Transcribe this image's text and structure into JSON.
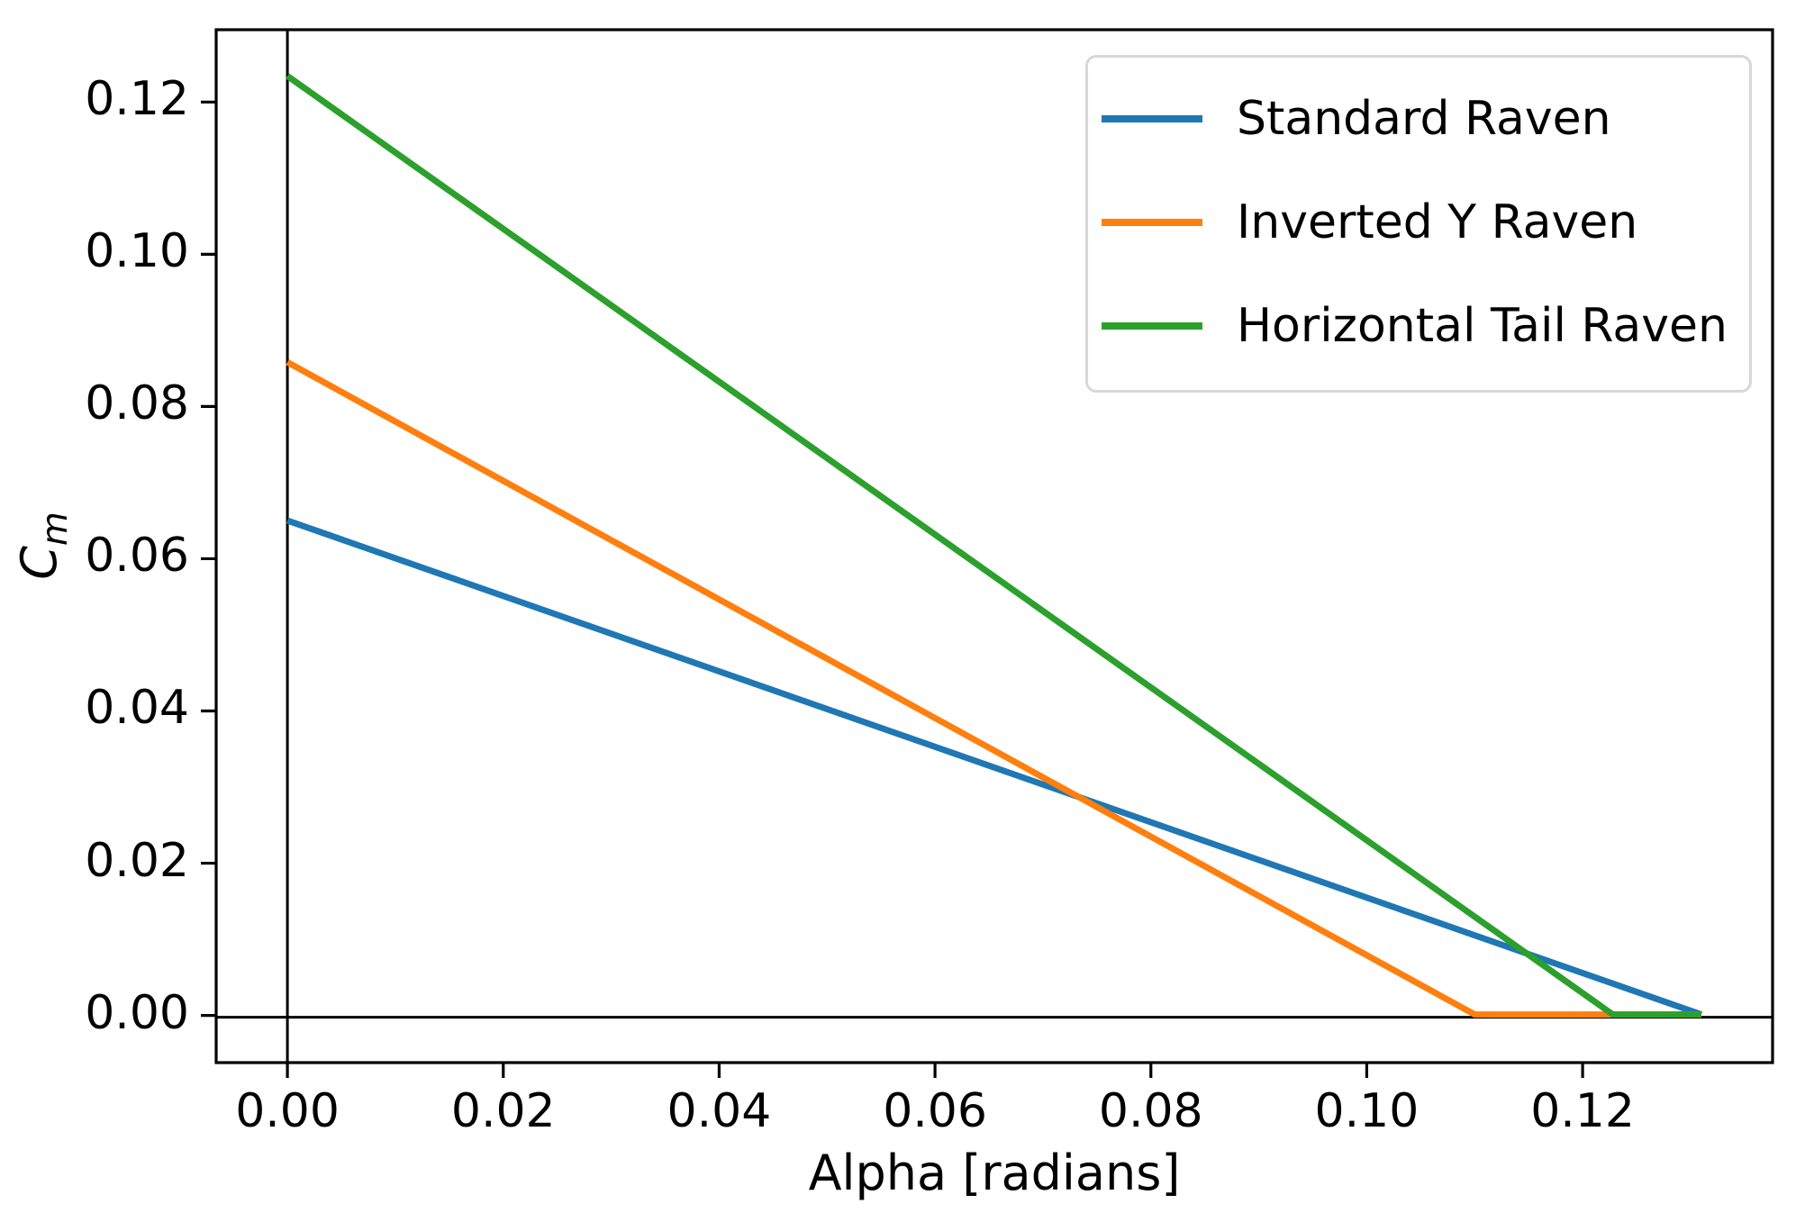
{
  "figure": {
    "background_color": "#ffffff",
    "axes_color": "#000000"
  },
  "chart_data": {
    "type": "line",
    "title": "",
    "xlabel": "Alpha [radians]",
    "ylabel": "Cm",
    "ylabel_main": "C",
    "ylabel_sub": "m",
    "xlim": [
      -0.0066,
      0.1376
    ],
    "ylim": [
      -0.0062,
      0.1295
    ],
    "grid": false,
    "legend_position": "upper right",
    "x_ticks": {
      "values": [
        0.0,
        0.02,
        0.04,
        0.06,
        0.08,
        0.1,
        0.12
      ],
      "labels": [
        "0.00",
        "0.02",
        "0.04",
        "0.06",
        "0.08",
        "0.10",
        "0.12"
      ]
    },
    "y_ticks": {
      "values": [
        0.0,
        0.02,
        0.04,
        0.06,
        0.08,
        0.1,
        0.12
      ],
      "labels": [
        "0.00",
        "0.02",
        "0.04",
        "0.06",
        "0.08",
        "0.10",
        "0.12"
      ]
    },
    "reference_lines": {
      "vertical_x": 0,
      "horizontal_y": 0,
      "color": "#000000"
    },
    "series": [
      {
        "name": "Standard Raven",
        "color": "#1f77b4",
        "points": [
          [
            0.0,
            0.0649
          ],
          [
            0.131,
            0.0
          ]
        ]
      },
      {
        "name": "Inverted Y Raven",
        "color": "#ff7f0e",
        "points": [
          [
            0.0,
            0.0857
          ],
          [
            0.11,
            0.0
          ],
          [
            0.131,
            0.0
          ]
        ]
      },
      {
        "name": "Horizontal Tail Raven",
        "color": "#2ca02c",
        "points": [
          [
            0.0,
            0.1233
          ],
          [
            0.1228,
            0.0
          ],
          [
            0.131,
            0.0
          ]
        ]
      }
    ]
  }
}
